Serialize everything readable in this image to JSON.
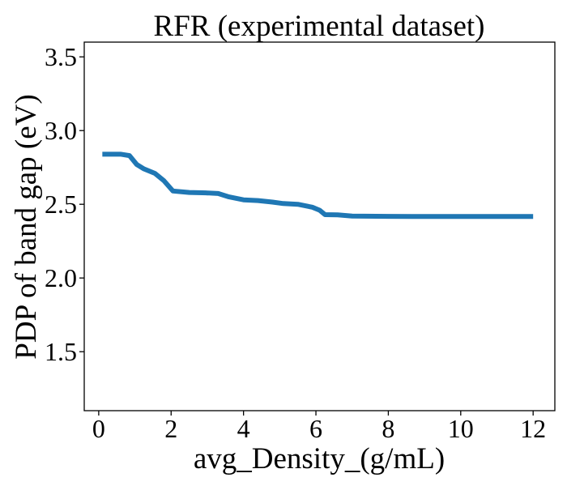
{
  "chart_data": {
    "type": "line",
    "title": "RFR (experimental dataset)",
    "xlabel": "avg_Density_(g/mL)",
    "ylabel": "PDP of band gap (eV)",
    "xlim": [
      -0.4,
      12.6
    ],
    "ylim": [
      1.1,
      3.6
    ],
    "xticks": [
      0,
      2,
      4,
      6,
      8,
      10,
      12
    ],
    "yticks": [
      1.5,
      2.0,
      2.5,
      3.0,
      3.5
    ],
    "xtick_labels": [
      "0",
      "2",
      "4",
      "6",
      "8",
      "10",
      "12"
    ],
    "ytick_labels": [
      "1.5",
      "2.0",
      "2.5",
      "3.0",
      "3.5"
    ],
    "grid": false,
    "legend": false,
    "series": [
      {
        "color": "#1f77b4",
        "x": [
          0.1,
          0.3,
          0.6,
          0.85,
          1.05,
          1.25,
          1.55,
          1.8,
          2.05,
          2.5,
          3.0,
          3.3,
          3.6,
          4.0,
          4.4,
          4.8,
          5.1,
          5.5,
          5.9,
          6.1,
          6.25,
          6.6,
          7.0,
          8.0,
          9.0,
          10.0,
          11.0,
          12.0
        ],
        "y": [
          2.84,
          2.84,
          2.84,
          2.83,
          2.77,
          2.74,
          2.71,
          2.66,
          2.59,
          2.58,
          2.577,
          2.573,
          2.55,
          2.53,
          2.525,
          2.515,
          2.505,
          2.5,
          2.48,
          2.46,
          2.43,
          2.428,
          2.42,
          2.418,
          2.417,
          2.417,
          2.417,
          2.417
        ]
      }
    ]
  }
}
